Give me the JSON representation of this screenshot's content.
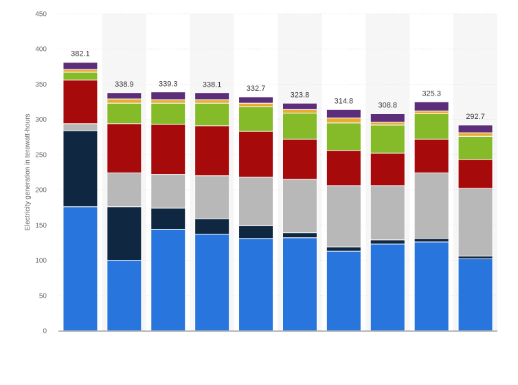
{
  "chart_data": {
    "type": "bar",
    "stacked": true,
    "title": "",
    "xlabel": "",
    "ylabel": "Electricity generation in terawatt-hours",
    "ylim": [
      0,
      450
    ],
    "yticks": [
      0,
      50,
      100,
      150,
      200,
      250,
      300,
      350,
      400,
      450
    ],
    "grid": true,
    "legend": "none",
    "categories": [
      "",
      "",
      "",
      "",
      "",
      "",
      "",
      "",
      "",
      ""
    ],
    "totals": [
      382.1,
      338.9,
      339.3,
      338.1,
      332.7,
      323.8,
      314.8,
      308.8,
      325.3,
      292.7
    ],
    "totals_text": [
      "382.1",
      "338.9",
      "339.3",
      "338.1",
      "332.7",
      "323.8",
      "314.8",
      "308.8",
      "325.3",
      "292.7"
    ],
    "series": [
      {
        "color": "#2876dd",
        "values": [
          176,
          100,
          144,
          137,
          131,
          132,
          113,
          123,
          126,
          102
        ]
      },
      {
        "color": "#0f2740",
        "values": [
          108,
          76,
          30,
          22,
          18,
          7,
          6,
          6,
          5,
          4
        ]
      },
      {
        "color": "#b8b8b8",
        "values": [
          10,
          48,
          48,
          61,
          69,
          76,
          87,
          77,
          93,
          96
        ]
      },
      {
        "color": "#a60a0a",
        "values": [
          62,
          70,
          71,
          71,
          65,
          57,
          50,
          46,
          48,
          41
        ]
      },
      {
        "color": "#85ba29",
        "values": [
          11,
          29,
          30,
          32,
          35,
          37,
          39,
          40,
          36,
          33
        ]
      },
      {
        "color": "#e8ac32",
        "values": [
          4,
          6,
          5,
          5,
          5,
          5,
          7,
          4,
          4,
          5
        ]
      },
      {
        "color": "#5c2d79",
        "values": [
          10,
          9,
          11,
          10,
          9,
          9,
          12,
          12,
          13,
          11
        ]
      }
    ],
    "colors": {
      "background": "#ffffff",
      "band": "#f6f6f6",
      "grid": "#e4e4e4",
      "axis": "#333333"
    }
  }
}
